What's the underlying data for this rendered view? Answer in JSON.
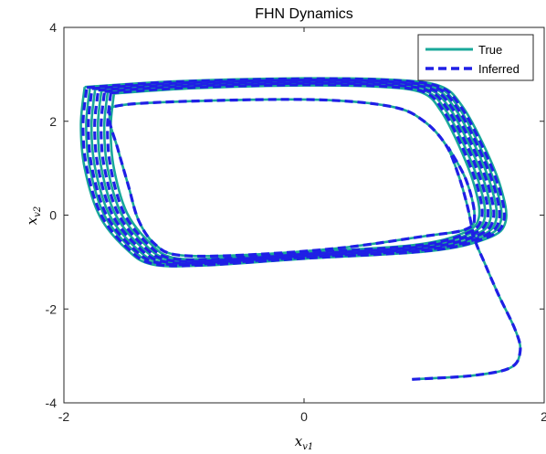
{
  "chart_data": {
    "type": "line",
    "title": "FHN Dynamics",
    "xlabel": "x",
    "xlabel_sub": "v1",
    "ylabel": "x",
    "ylabel_sub": "v2",
    "xlim": [
      -2,
      2
    ],
    "ylim": [
      -4,
      4
    ],
    "xticks": [
      -2,
      0,
      2
    ],
    "yticks": [
      -4,
      -2,
      0,
      2,
      4
    ],
    "xtick_labels": [
      "-2",
      "0",
      "2"
    ],
    "ytick_labels": [
      "-4",
      "-2",
      "0",
      "2",
      "4"
    ],
    "grid": false,
    "legend_position": "top-right",
    "series": [
      {
        "name": "True",
        "color": "#1aa89a",
        "style": "solid",
        "transient": [
          [
            0.9,
            -3.5
          ],
          [
            1.4,
            -3.42
          ],
          [
            1.72,
            -3.25
          ],
          [
            1.8,
            -2.9
          ],
          [
            1.76,
            -2.45
          ],
          [
            1.62,
            -1.7
          ],
          [
            1.5,
            -1.0
          ],
          [
            1.42,
            -0.5
          ],
          [
            1.36,
            0.2
          ],
          [
            1.28,
            0.9
          ],
          [
            1.18,
            1.5
          ],
          [
            1.0,
            2.0
          ],
          [
            0.75,
            2.3
          ],
          [
            0.2,
            2.45
          ],
          [
            -0.6,
            2.45
          ],
          [
            -1.5,
            2.35
          ],
          [
            -1.62,
            2.1
          ],
          [
            -1.55,
            1.4
          ],
          [
            -1.46,
            0.6
          ],
          [
            -1.38,
            -0.1
          ],
          [
            -1.25,
            -0.6
          ],
          [
            -1.05,
            -0.85
          ],
          [
            -0.5,
            -0.85
          ],
          [
            0.3,
            -0.7
          ],
          [
            1.0,
            -0.45
          ],
          [
            1.35,
            -0.3
          ],
          [
            1.42,
            0.0
          ],
          [
            1.35,
            0.75
          ],
          [
            1.2,
            1.45
          ]
        ],
        "cycle": [
          [
            -1.74,
            2.68
          ],
          [
            -1.0,
            2.8
          ],
          [
            0.0,
            2.86
          ],
          [
            0.7,
            2.83
          ],
          [
            1.08,
            2.7
          ],
          [
            1.25,
            2.3
          ],
          [
            1.42,
            1.5
          ],
          [
            1.56,
            0.6
          ],
          [
            1.6,
            -0.1
          ],
          [
            1.46,
            -0.45
          ],
          [
            1.0,
            -0.72
          ],
          [
            0.0,
            -0.88
          ],
          [
            -0.8,
            -1.02
          ],
          [
            -1.2,
            -1.0
          ],
          [
            -1.4,
            -0.7
          ],
          [
            -1.62,
            0.0
          ],
          [
            -1.74,
            1.0
          ],
          [
            -1.77,
            1.9
          ],
          [
            -1.74,
            2.68
          ]
        ],
        "cycle_offsets": [
          -0.18,
          -0.12,
          -0.06,
          0.0,
          0.05,
          0.1
        ]
      },
      {
        "name": "Inferred",
        "color": "#1f1fe6",
        "style": "dashed",
        "transient": [
          [
            0.9,
            -3.5
          ],
          [
            1.4,
            -3.42
          ],
          [
            1.72,
            -3.25
          ],
          [
            1.8,
            -2.9
          ],
          [
            1.76,
            -2.45
          ],
          [
            1.62,
            -1.7
          ],
          [
            1.5,
            -1.0
          ],
          [
            1.42,
            -0.5
          ],
          [
            1.36,
            0.2
          ],
          [
            1.28,
            0.9
          ],
          [
            1.18,
            1.5
          ],
          [
            1.0,
            2.0
          ],
          [
            0.75,
            2.3
          ],
          [
            0.2,
            2.45
          ],
          [
            -0.6,
            2.45
          ],
          [
            -1.5,
            2.35
          ],
          [
            -1.62,
            2.1
          ],
          [
            -1.55,
            1.4
          ],
          [
            -1.46,
            0.6
          ],
          [
            -1.38,
            -0.1
          ],
          [
            -1.25,
            -0.6
          ],
          [
            -1.05,
            -0.85
          ],
          [
            -0.5,
            -0.85
          ],
          [
            0.3,
            -0.7
          ],
          [
            1.0,
            -0.45
          ],
          [
            1.35,
            -0.3
          ],
          [
            1.42,
            0.0
          ],
          [
            1.35,
            0.75
          ],
          [
            1.2,
            1.45
          ]
        ],
        "cycle": [
          [
            -1.74,
            2.68
          ],
          [
            -1.0,
            2.8
          ],
          [
            0.0,
            2.86
          ],
          [
            0.7,
            2.83
          ],
          [
            1.08,
            2.7
          ],
          [
            1.25,
            2.3
          ],
          [
            1.42,
            1.5
          ],
          [
            1.56,
            0.6
          ],
          [
            1.6,
            -0.1
          ],
          [
            1.46,
            -0.45
          ],
          [
            1.0,
            -0.72
          ],
          [
            0.0,
            -0.88
          ],
          [
            -0.8,
            -1.02
          ],
          [
            -1.2,
            -1.0
          ],
          [
            -1.4,
            -0.7
          ],
          [
            -1.62,
            0.0
          ],
          [
            -1.74,
            1.0
          ],
          [
            -1.77,
            1.9
          ],
          [
            -1.74,
            2.68
          ]
        ],
        "cycle_offsets": [
          -0.15,
          -0.09,
          -0.03,
          0.03,
          0.08
        ]
      }
    ]
  }
}
